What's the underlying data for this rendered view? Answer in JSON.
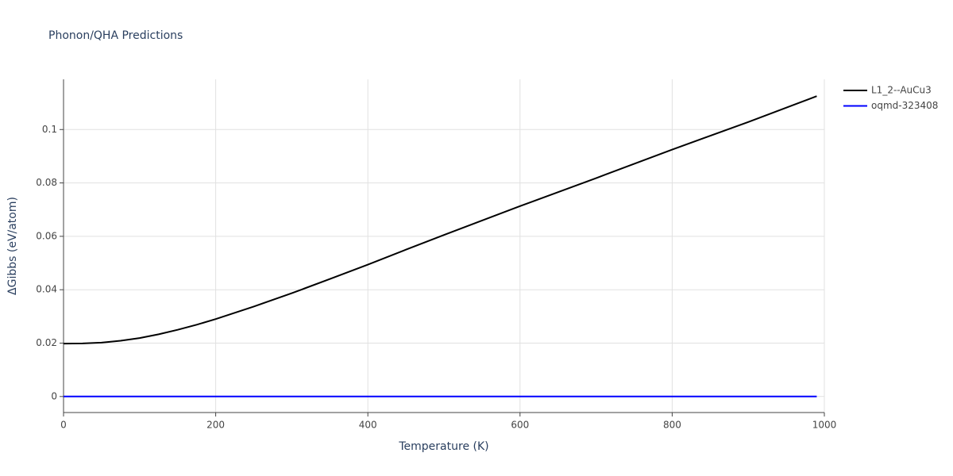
{
  "chart_data": {
    "type": "line",
    "title": "Phonon/QHA Predictions",
    "x_label": "Temperature (K)",
    "y_label": "ΔGibbs (eV/atom)",
    "xlim": [
      0,
      1000
    ],
    "xticks": [
      0,
      200,
      400,
      600,
      800,
      1000
    ],
    "ylim": [
      -0.006,
      0.1188
    ],
    "yticks": [
      0,
      0.02,
      0.04,
      0.06,
      0.08,
      0.1
    ],
    "grid": true,
    "legend": "top-right",
    "series": [
      {
        "name": "L1_2--AuCu3",
        "color": "#000000",
        "x": [
          0,
          25,
          50,
          75,
          100,
          125,
          150,
          175,
          200,
          250,
          300,
          350,
          400,
          450,
          500,
          600,
          700,
          800,
          900,
          990
        ],
        "values": [
          0.0198,
          0.0199,
          0.0202,
          0.0209,
          0.0219,
          0.0233,
          0.025,
          0.0269,
          0.029,
          0.0337,
          0.0387,
          0.044,
          0.0494,
          0.055,
          0.0605,
          0.0713,
          0.0818,
          0.0925,
          0.1028,
          0.1125
        ]
      },
      {
        "name": "oqmd-323408",
        "color": "#0000ff",
        "x": [
          0,
          990
        ],
        "values": [
          0,
          0
        ]
      }
    ]
  }
}
